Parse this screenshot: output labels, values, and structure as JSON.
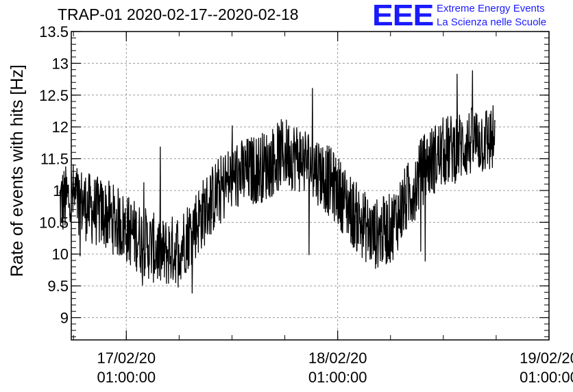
{
  "chart_data": {
    "type": "line",
    "title": "TRAP-01 2020-02-17--2020-02-18",
    "xlabel": "",
    "ylabel": "Rate of events with hits [Hz]",
    "ylim": [
      8.65,
      13.5
    ],
    "y_ticks": [
      "9",
      "9.5",
      "10",
      "10.5",
      "11",
      "11.5",
      "12",
      "12.5",
      "13",
      "13.5"
    ],
    "x_ticks": [
      {
        "date": "17/02/20",
        "time": "01:00:00"
      },
      {
        "date": "18/02/20",
        "time": "01:00:00"
      },
      {
        "date": "19/02/20",
        "time": "01:00:00"
      }
    ],
    "x_start": "2020-02-16T18:45:00",
    "x_end": "2020-02-19T01:00:00",
    "grid": true,
    "series": [
      {
        "x": [
          "2020-02-16T17:25",
          "2020-02-16T19:00",
          "2020-02-16T21:00",
          "2020-02-16T23:00",
          "2020-02-17T01:00",
          "2020-02-17T03:00",
          "2020-02-17T05:00",
          "2020-02-17T07:00",
          "2020-02-17T09:00",
          "2020-02-17T11:00",
          "2020-02-17T13:00",
          "2020-02-17T15:00",
          "2020-02-17T17:00",
          "2020-02-17T19:00",
          "2020-02-17T21:00",
          "2020-02-17T23:00",
          "2020-02-18T01:00",
          "2020-02-18T03:00",
          "2020-02-18T05:00",
          "2020-02-18T07:00",
          "2020-02-18T09:00",
          "2020-02-18T11:00",
          "2020-02-18T13:00",
          "2020-02-18T15:00",
          "2020-02-18T17:00",
          "2020-02-18T18:55"
        ],
        "values": [
          10.8,
          10.9,
          10.7,
          10.6,
          10.4,
          10.2,
          10.0,
          10.1,
          10.5,
          10.9,
          11.2,
          11.3,
          11.4,
          11.6,
          11.5,
          11.3,
          11.0,
          10.6,
          10.3,
          10.4,
          10.9,
          11.4,
          11.6,
          11.7,
          11.8,
          11.8
        ],
        "noise_band": 0.7,
        "min_value": 9.07,
        "max_value": 13.1
      }
    ]
  },
  "logo": {
    "mark": "EEE",
    "line1": "Extreme Energy Events",
    "line2": "La Scienza nelle Scuole",
    "color": "#1a1aff"
  }
}
